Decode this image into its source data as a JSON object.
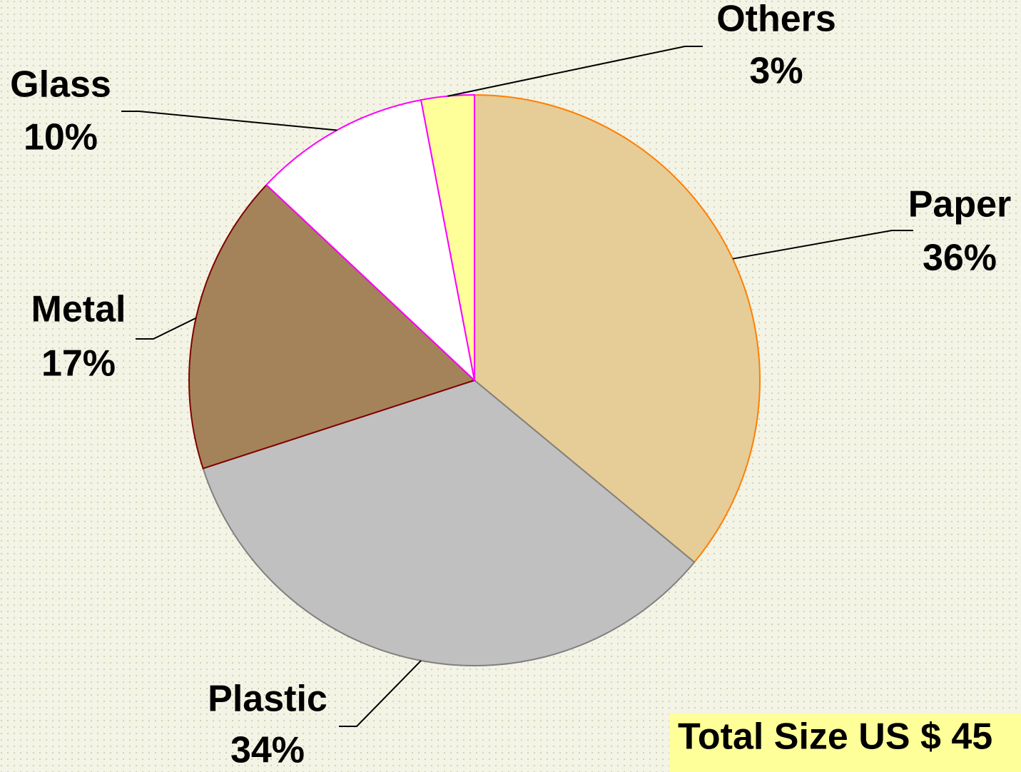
{
  "chart_data": {
    "type": "pie",
    "categories": [
      "Paper",
      "Plastic",
      "Metal",
      "Glass",
      "Others"
    ],
    "values": [
      36,
      34,
      17,
      10,
      3
    ],
    "value_labels": [
      "36%",
      "34%",
      "17%",
      "10%",
      "3%"
    ],
    "colors": [
      "#e6cc96",
      "#c0c0c0",
      "#a5835a",
      "#ffffff",
      "#ffff99"
    ],
    "annotation": "Total Size US $ 45"
  }
}
